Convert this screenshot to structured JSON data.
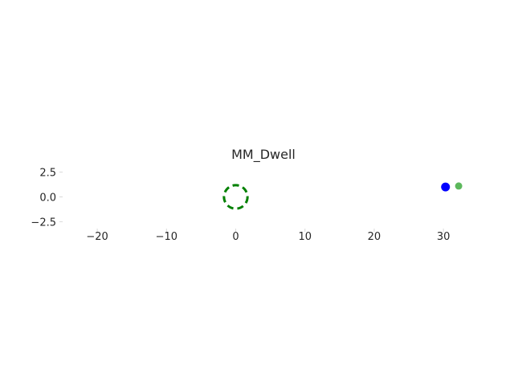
{
  "chart_data": {
    "type": "scatter",
    "title": "MM_Dwell",
    "xlabel": "",
    "ylabel": "",
    "xlim": [
      -25.0,
      33.0
    ],
    "ylim": [
      -3.2,
      3.2
    ],
    "x_ticks": [
      -20,
      -10,
      0,
      10,
      20,
      30
    ],
    "x_tick_labels": [
      "−20",
      "−10",
      "0",
      "10",
      "20",
      "30"
    ],
    "y_ticks": [
      2.5,
      0.0,
      -2.5
    ],
    "y_tick_labels": [
      "2.5",
      "0.0",
      "−2.5"
    ],
    "grid": false,
    "legend": "none",
    "colors": {
      "circle": "#008000",
      "point_blue": "#0000ff",
      "point_green": "#5cb85c",
      "text": "#262626",
      "tick": "#d9d9d9"
    },
    "series": [
      {
        "kind": "dashed-circle",
        "center": [
          0,
          0
        ],
        "radius": 1.7,
        "color": "#008000"
      },
      {
        "kind": "point",
        "x": 30.3,
        "y": 1.0,
        "color": "#0000ff"
      },
      {
        "kind": "point",
        "x": 32.2,
        "y": 1.1,
        "color": "#5cb85c"
      }
    ]
  }
}
